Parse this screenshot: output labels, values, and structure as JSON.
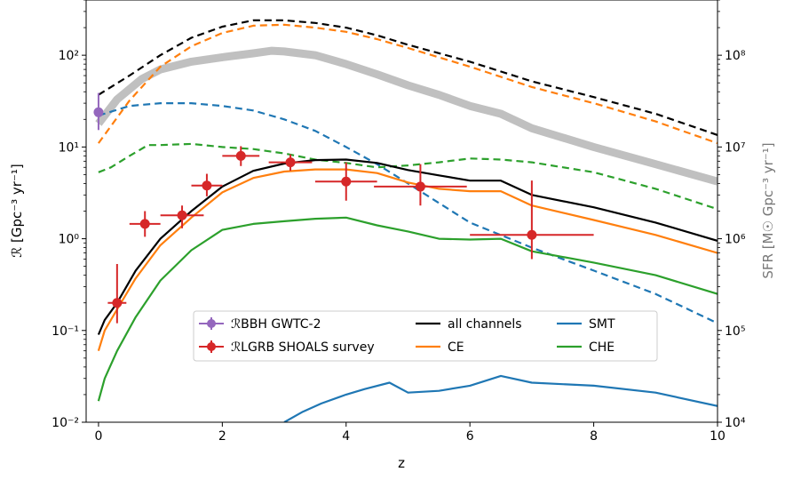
{
  "chart_data": {
    "type": "line",
    "xlabel": "z",
    "ylabel": "ℛ  [Gpc⁻³ yr⁻¹]",
    "ylabel_right": "SFR [M☉ Gpc⁻³ yr⁻¹]",
    "xlim": [
      -0.2,
      10
    ],
    "ylim": [
      0.01,
      400
    ],
    "yscale": "log",
    "ylim_right": [
      10000,
      400000000
    ],
    "x_ticks": [
      "0",
      "2",
      "4",
      "6",
      "8",
      "10"
    ],
    "y_ticks_left": [
      "10⁻²",
      "10⁻¹",
      "10⁰",
      "10¹",
      "10²"
    ],
    "y_ticks_right": [
      "10⁴",
      "10⁵",
      "10⁶",
      "10⁷",
      "10⁸"
    ],
    "colors": {
      "all_channels": "#000000",
      "CE": "#ff7f0e",
      "SMT": "#1f77b4",
      "CHE": "#2ca02c",
      "SFR": "#c0c0c0",
      "LGRB": "#d62728",
      "BBH": "#9467bd"
    },
    "legend": {
      "placement": "lower center",
      "items": [
        {
          "label": "ℛBBH GWTC-2",
          "kind": "errorbar",
          "color": "#9467bd"
        },
        {
          "label": "ℛLGRB SHOALS survey",
          "kind": "errorbar",
          "color": "#d62728"
        },
        {
          "label": "all channels",
          "kind": "line",
          "color": "#000000"
        },
        {
          "label": "CE",
          "kind": "line",
          "color": "#ff7f0e"
        },
        {
          "label": "SMT",
          "kind": "line",
          "color": "#1f77b4"
        },
        {
          "label": "CHE",
          "kind": "line",
          "color": "#2ca02c"
        }
      ]
    },
    "series": [
      {
        "name": "all channels",
        "style": "solid",
        "x": [
          0,
          0.1,
          0.3,
          0.6,
          1.0,
          1.5,
          2.0,
          2.5,
          3.0,
          3.5,
          4.0,
          4.5,
          5.0,
          5.5,
          6.0,
          6.5,
          7.0,
          8.0,
          9.0,
          10.0
        ],
        "y": [
          0.09,
          0.13,
          0.2,
          0.45,
          1.0,
          2.0,
          3.7,
          5.5,
          6.6,
          7.2,
          7.3,
          6.7,
          5.6,
          4.9,
          4.3,
          4.3,
          3.0,
          2.2,
          1.5,
          0.95
        ]
      },
      {
        "name": "CE",
        "style": "solid",
        "x": [
          0,
          0.1,
          0.3,
          0.6,
          1.0,
          1.5,
          2.0,
          2.5,
          3.0,
          3.5,
          4.0,
          4.5,
          5.0,
          5.5,
          6.0,
          6.5,
          7.0,
          8.0,
          9.0,
          10.0
        ],
        "y": [
          0.06,
          0.1,
          0.17,
          0.37,
          0.85,
          1.7,
          3.2,
          4.6,
          5.4,
          5.7,
          5.7,
          5.2,
          4.1,
          3.5,
          3.3,
          3.3,
          2.3,
          1.6,
          1.1,
          0.7
        ]
      },
      {
        "name": "CHE",
        "style": "solid",
        "x": [
          0,
          0.1,
          0.3,
          0.6,
          1.0,
          1.5,
          2.0,
          2.5,
          3.0,
          3.5,
          4.0,
          4.5,
          5.0,
          5.5,
          6.0,
          6.5,
          7.0,
          8.0,
          9.0,
          10.0
        ],
        "y": [
          0.017,
          0.03,
          0.06,
          0.14,
          0.35,
          0.75,
          1.25,
          1.45,
          1.55,
          1.65,
          1.7,
          1.4,
          1.2,
          1.0,
          0.98,
          1.0,
          0.73,
          0.55,
          0.4,
          0.25
        ]
      },
      {
        "name": "SMT",
        "style": "solid",
        "x": [
          3.0,
          3.3,
          3.6,
          4.0,
          4.3,
          4.7,
          5.0,
          5.5,
          6.0,
          6.5,
          7.0,
          8.0,
          9.0,
          10.0
        ],
        "y": [
          0.01,
          0.013,
          0.016,
          0.02,
          0.023,
          0.027,
          0.021,
          0.022,
          0.025,
          0.032,
          0.027,
          0.025,
          0.021,
          0.015
        ]
      },
      {
        "name": "all channels (SFR)",
        "style": "dashed",
        "x": [
          0,
          0.5,
          1.0,
          1.5,
          2.0,
          2.5,
          3.0,
          3.5,
          4.0,
          4.5,
          5.0,
          6.0,
          7.0,
          8.0,
          9.0,
          10.0
        ],
        "y": [
          37,
          60,
          100,
          155,
          205,
          240,
          240,
          225,
          200,
          165,
          130,
          85,
          52,
          35,
          23,
          13.5
        ]
      },
      {
        "name": "CE (SFR)",
        "style": "dashed",
        "x": [
          0,
          0.5,
          1.0,
          1.5,
          2.0,
          2.5,
          3.0,
          3.5,
          4.0,
          4.5,
          5.0,
          6.0,
          7.0,
          8.0,
          9.0,
          10.0
        ],
        "y": [
          11,
          32,
          75,
          125,
          175,
          210,
          215,
          200,
          180,
          150,
          120,
          75,
          45,
          30,
          19,
          11
        ]
      },
      {
        "name": "SMT (SFR)",
        "style": "dashed",
        "x": [
          0,
          0.5,
          1.0,
          1.5,
          2.0,
          2.5,
          3.0,
          3.5,
          4.0,
          4.5,
          5.0,
          6.0,
          7.0,
          8.0,
          9.0,
          10.0
        ],
        "y": [
          22,
          28,
          30,
          30,
          28,
          25,
          20,
          15,
          10,
          6.5,
          4.0,
          1.5,
          0.8,
          0.45,
          0.25,
          0.12
        ]
      },
      {
        "name": "CHE (SFR)",
        "style": "dashed",
        "x": [
          0,
          0.2,
          0.5,
          0.8,
          1.0,
          1.5,
          2.0,
          2.5,
          3.0,
          3.5,
          4.0,
          4.5,
          5.0,
          5.5,
          6.0,
          6.5,
          7.0,
          8.0,
          9.0,
          10.0
        ],
        "y": [
          5.3,
          6.0,
          8.0,
          10.5,
          10.5,
          10.8,
          10.0,
          9.5,
          8.5,
          7.3,
          6.7,
          6.0,
          6.3,
          6.8,
          7.5,
          7.3,
          6.8,
          5.3,
          3.5,
          2.1
        ]
      },
      {
        "name": "SFR",
        "style": "thick",
        "x": [
          0,
          0.3,
          0.7,
          1.0,
          1.5,
          2.0,
          2.5,
          2.8,
          3.0,
          3.5,
          4.0,
          4.5,
          5.0,
          5.5,
          6.0,
          6.5,
          7.0,
          8.0,
          9.0,
          10.0
        ],
        "y": [
          18,
          33,
          55,
          70,
          85,
          95,
          105,
          112,
          110,
          100,
          80,
          62,
          47,
          37,
          28,
          23,
          16,
          10,
          6.5,
          4.2
        ]
      }
    ],
    "lgrb_points": [
      {
        "x": 0.3,
        "y": 0.2,
        "xerr": [
          0.15,
          0.15
        ],
        "yerr": [
          0.08,
          0.33
        ]
      },
      {
        "x": 0.75,
        "y": 1.45,
        "xerr": [
          0.25,
          0.25
        ],
        "yerr": [
          0.4,
          0.55
        ]
      },
      {
        "x": 1.35,
        "y": 1.8,
        "xerr": [
          0.35,
          0.35
        ],
        "yerr": [
          0.5,
          0.5
        ]
      },
      {
        "x": 1.75,
        "y": 3.8,
        "xerr": [
          0.25,
          0.25
        ],
        "yerr": [
          0.9,
          1.3
        ]
      },
      {
        "x": 2.3,
        "y": 8.0,
        "xerr": [
          0.3,
          0.3
        ],
        "yerr": [
          1.8,
          2.2
        ]
      },
      {
        "x": 3.1,
        "y": 6.8,
        "xerr": [
          0.35,
          0.35
        ],
        "yerr": [
          1.3,
          1.5
        ]
      },
      {
        "x": 4.0,
        "y": 4.2,
        "xerr": [
          0.5,
          0.5
        ],
        "yerr": [
          1.6,
          2.6
        ]
      },
      {
        "x": 5.2,
        "y": 3.7,
        "xerr": [
          0.75,
          0.75
        ],
        "yerr": [
          1.4,
          2.8
        ]
      },
      {
        "x": 7.0,
        "y": 1.1,
        "xerr": [
          1.0,
          1.0
        ],
        "yerr": [
          0.5,
          3.2
        ]
      }
    ],
    "bbh_point": {
      "x": 0.0,
      "y": 23.9,
      "yerr": [
        8.6,
        14.9
      ]
    }
  }
}
